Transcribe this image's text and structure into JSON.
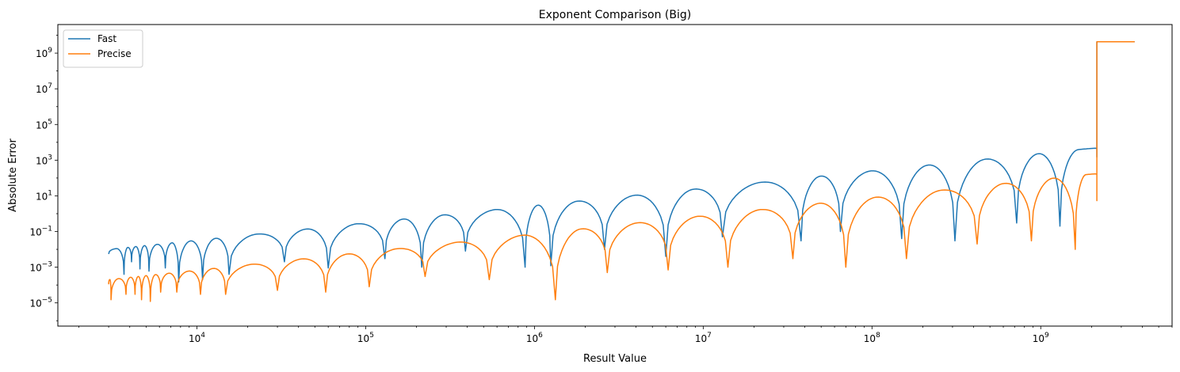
{
  "chart_data": {
    "type": "line",
    "title": "Exponent Comparison (Big)",
    "xlabel": "Result Value",
    "ylabel": "Absolute Error",
    "x_scale": "log",
    "y_scale": "log",
    "xlim": [
      1500,
      6000000000
    ],
    "ylim": [
      5e-07,
      40000000000
    ],
    "x_ticks": [
      {
        "value": 10000,
        "base": "10",
        "exp": "4"
      },
      {
        "value": 100000,
        "base": "10",
        "exp": "5"
      },
      {
        "value": 1000000,
        "base": "10",
        "exp": "6"
      },
      {
        "value": 10000000,
        "base": "10",
        "exp": "7"
      },
      {
        "value": 100000000,
        "base": "10",
        "exp": "8"
      },
      {
        "value": 1000000000,
        "base": "10",
        "exp": "9"
      }
    ],
    "y_ticks": [
      {
        "value": 1e-05,
        "base": "10",
        "exp": "−5"
      },
      {
        "value": 0.001,
        "base": "10",
        "exp": "−3"
      },
      {
        "value": 0.1,
        "base": "10",
        "exp": "−1"
      },
      {
        "value": 10,
        "base": "10",
        "exp": "1"
      },
      {
        "value": 1000,
        "base": "10",
        "exp": "3"
      },
      {
        "value": 100000,
        "base": "10",
        "exp": "5"
      },
      {
        "value": 10000000,
        "base": "10",
        "exp": "7"
      },
      {
        "value": 1000000000,
        "base": "10",
        "exp": "9"
      }
    ],
    "grid": false,
    "legend_position": "top-left",
    "series": [
      {
        "name": "Fast",
        "color": "#1f77b4",
        "envelope": {
          "x_start": 3000,
          "x_end": 2150000000,
          "y_start": 0.01,
          "y_end": 5000,
          "x_jump": 2150000000,
          "y_after_jump": 4300000000,
          "x_last": 3600000000
        },
        "dips": [
          {
            "x": 3700,
            "y": 0.0004
          },
          {
            "x": 4100,
            "y": 0.002
          },
          {
            "x": 4600,
            "y": 0.0008
          },
          {
            "x": 5200,
            "y": 0.0006
          },
          {
            "x": 6500,
            "y": 0.0009
          },
          {
            "x": 7800,
            "y": 0.00015
          },
          {
            "x": 10800,
            "y": 0.0002
          },
          {
            "x": 15500,
            "y": 0.0004
          },
          {
            "x": 33000,
            "y": 0.002
          },
          {
            "x": 60000,
            "y": 0.0009
          },
          {
            "x": 130000,
            "y": 0.003
          },
          {
            "x": 215000,
            "y": 0.001
          },
          {
            "x": 390000,
            "y": 0.008
          },
          {
            "x": 880000,
            "y": 0.001
          },
          {
            "x": 1250000,
            "y": 0.0012
          },
          {
            "x": 2600000,
            "y": 0.01
          },
          {
            "x": 6000000,
            "y": 0.004
          },
          {
            "x": 13000000,
            "y": 0.05
          },
          {
            "x": 38000000,
            "y": 0.03
          },
          {
            "x": 65000000,
            "y": 0.1
          },
          {
            "x": 150000000,
            "y": 0.04
          },
          {
            "x": 310000000,
            "y": 0.03
          },
          {
            "x": 720000000,
            "y": 0.3
          },
          {
            "x": 1300000000,
            "y": 0.2
          }
        ]
      },
      {
        "name": "Precise",
        "color": "#ff7f0e",
        "envelope": {
          "x_start": 3000,
          "x_end": 2150000000,
          "y_start": 0.0002,
          "y_end": 180,
          "x_jump": 2150000000,
          "y_after_jump": 4300000000,
          "x_last": 3600000000
        },
        "dips": [
          {
            "x": 3100,
            "y": 1.5e-05
          },
          {
            "x": 3800,
            "y": 3e-05
          },
          {
            "x": 4300,
            "y": 3e-05
          },
          {
            "x": 4700,
            "y": 1.5e-05
          },
          {
            "x": 5300,
            "y": 1.2e-05
          },
          {
            "x": 6100,
            "y": 4e-05
          },
          {
            "x": 7600,
            "y": 4e-05
          },
          {
            "x": 10500,
            "y": 3e-05
          },
          {
            "x": 14800,
            "y": 3e-05
          },
          {
            "x": 30000,
            "y": 5e-05
          },
          {
            "x": 58000,
            "y": 4e-05
          },
          {
            "x": 105000,
            "y": 8e-05
          },
          {
            "x": 225000,
            "y": 0.0003
          },
          {
            "x": 540000,
            "y": 0.0002
          },
          {
            "x": 1330000,
            "y": 1.5e-05
          },
          {
            "x": 2700000,
            "y": 0.0005
          },
          {
            "x": 6200000,
            "y": 0.0007
          },
          {
            "x": 14000000,
            "y": 0.001
          },
          {
            "x": 34000000,
            "y": 0.003
          },
          {
            "x": 70000000,
            "y": 0.001
          },
          {
            "x": 160000000,
            "y": 0.003
          },
          {
            "x": 420000000,
            "y": 0.02
          },
          {
            "x": 880000000,
            "y": 0.03
          },
          {
            "x": 1600000000,
            "y": 0.01
          }
        ]
      }
    ]
  }
}
